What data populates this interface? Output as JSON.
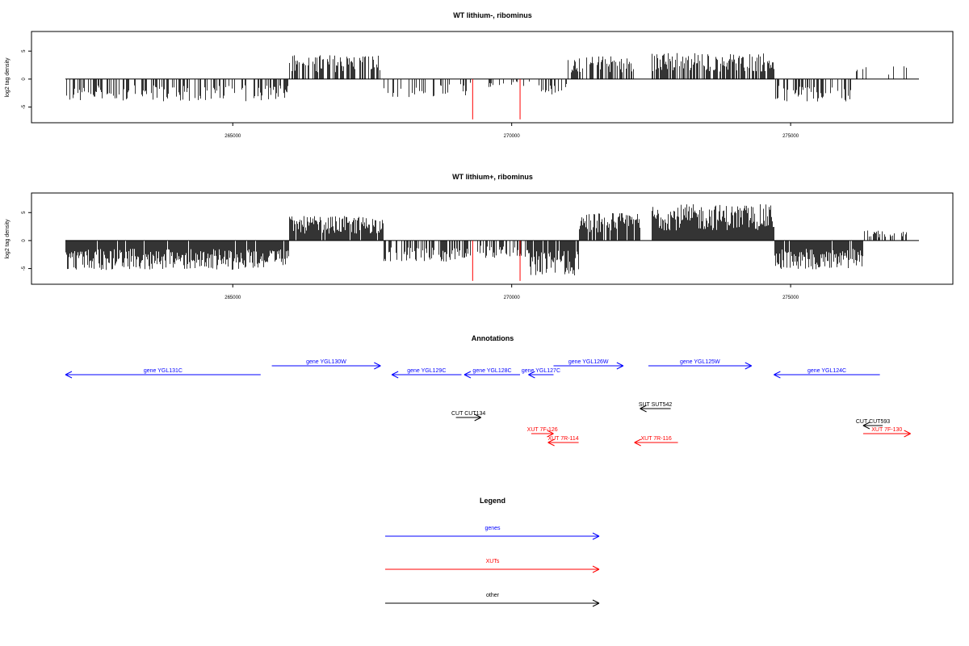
{
  "colors": {
    "gene": "#0000ff",
    "xut": "#ff0000",
    "other": "#000000",
    "signal": "#000000",
    "marker": "#ff0000"
  },
  "chart_data": [
    {
      "type": "bar",
      "title": "WT lithium-, ribominus",
      "xlabel": "",
      "ylabel": "log2 tag density",
      "xlim": [
        262000,
        277300
      ],
      "ylim": [
        -7.8,
        8.5
      ],
      "xticks": [
        265000,
        270000,
        275000
      ],
      "xtick_labels": [
        "265000",
        "270000",
        "275000"
      ],
      "yticks": [
        -5,
        0,
        5
      ],
      "ytick_labels": [
        "-5",
        "0",
        "5"
      ],
      "markers": [
        269300,
        270150
      ],
      "segments": [
        {
          "from": 262000,
          "to": 266000,
          "sign": -1,
          "amp": 3.2,
          "density": 0.45
        },
        {
          "from": 266000,
          "to": 267650,
          "sign": 1,
          "amp": 3.5,
          "density": 0.5
        },
        {
          "from": 267650,
          "to": 269200,
          "sign": -1,
          "amp": 2.6,
          "density": 0.3
        },
        {
          "from": 269200,
          "to": 270400,
          "sign": -1,
          "amp": 1.2,
          "density": 0.1
        },
        {
          "from": 270400,
          "to": 271000,
          "sign": -1,
          "amp": 2.3,
          "density": 0.35
        },
        {
          "from": 271000,
          "to": 272200,
          "sign": 1,
          "amp": 3.3,
          "density": 0.6
        },
        {
          "from": 272200,
          "to": 272500,
          "sign": 1,
          "amp": 1.0,
          "density": 0.1
        },
        {
          "from": 272500,
          "to": 274700,
          "sign": 1,
          "amp": 3.8,
          "density": 0.7
        },
        {
          "from": 274700,
          "to": 276100,
          "sign": -1,
          "amp": 3.2,
          "density": 0.5
        },
        {
          "from": 276100,
          "to": 277100,
          "sign": 1,
          "amp": 2.2,
          "density": 0.15
        }
      ]
    },
    {
      "type": "bar",
      "title": "WT lithium+, ribominus",
      "xlabel": "",
      "ylabel": "log2 tag density",
      "xlim": [
        262000,
        277300
      ],
      "ylim": [
        -7.8,
        8.5
      ],
      "xticks": [
        265000,
        270000,
        275000
      ],
      "xtick_labels": [
        "265000",
        "270000",
        "275000"
      ],
      "yticks": [
        -5,
        0,
        5
      ],
      "ytick_labels": [
        "-5",
        "0",
        "5"
      ],
      "markers": [
        269300,
        270150
      ],
      "segments": [
        {
          "from": 262000,
          "to": 266000,
          "sign": -1,
          "amp": 4.2,
          "density": 0.95
        },
        {
          "from": 266000,
          "to": 267700,
          "sign": 1,
          "amp": 3.5,
          "density": 0.95
        },
        {
          "from": 267700,
          "to": 269000,
          "sign": -1,
          "amp": 3.0,
          "density": 0.6
        },
        {
          "from": 269000,
          "to": 270300,
          "sign": -1,
          "amp": 2.5,
          "density": 0.5
        },
        {
          "from": 270300,
          "to": 271200,
          "sign": -1,
          "amp": 5.0,
          "density": 0.95
        },
        {
          "from": 271200,
          "to": 272300,
          "sign": 1,
          "amp": 4.0,
          "density": 0.9
        },
        {
          "from": 272500,
          "to": 274700,
          "sign": 1,
          "amp": 5.2,
          "density": 1.0
        },
        {
          "from": 274700,
          "to": 276300,
          "sign": -1,
          "amp": 4.2,
          "density": 0.95
        },
        {
          "from": 276300,
          "to": 277100,
          "sign": 1,
          "amp": 1.5,
          "density": 0.4
        }
      ]
    }
  ],
  "annotations": {
    "title": "Annotations",
    "features": [
      {
        "label": "gene YGL131C",
        "from": 262000,
        "to": 265500,
        "strand": "-",
        "kind": "gene",
        "row": 1
      },
      {
        "label": "gene YGL130W",
        "from": 265700,
        "to": 267650,
        "strand": "+",
        "kind": "gene",
        "row": 0
      },
      {
        "label": "gene YGL129C",
        "from": 267850,
        "to": 269100,
        "strand": "-",
        "kind": "gene",
        "row": 1
      },
      {
        "label": "gene YGL128C",
        "from": 269150,
        "to": 270150,
        "strand": "-",
        "kind": "gene",
        "row": 1
      },
      {
        "label": "gene YGL127C",
        "from": 270300,
        "to": 270750,
        "strand": "-",
        "kind": "gene",
        "row": 1
      },
      {
        "label": "gene YGL126W",
        "from": 270750,
        "to": 272000,
        "strand": "+",
        "kind": "gene",
        "row": 0
      },
      {
        "label": "gene YGL125W",
        "from": 272450,
        "to": 274300,
        "strand": "+",
        "kind": "gene",
        "row": 0
      },
      {
        "label": "gene YGL124C",
        "from": 274700,
        "to": 276600,
        "strand": "-",
        "kind": "gene",
        "row": 1
      },
      {
        "label": "SUT SUT542",
        "from": 272300,
        "to": 272850,
        "strand": "-",
        "kind": "other",
        "row": 2
      },
      {
        "label": "CUT CUT134",
        "from": 269000,
        "to": 269450,
        "strand": "+",
        "kind": "other",
        "row": 3
      },
      {
        "label": "CUT CUT593",
        "from": 276300,
        "to": 276650,
        "strand": "-",
        "kind": "other",
        "row": 4
      },
      {
        "label": "XUT 7F-126",
        "from": 270350,
        "to": 270750,
        "strand": "+",
        "kind": "xut",
        "row": 5
      },
      {
        "label": "XUT 7F-130",
        "from": 276300,
        "to": 277150,
        "strand": "+",
        "kind": "xut",
        "row": 5
      },
      {
        "label": "XUT 7R-114",
        "from": 270650,
        "to": 271200,
        "strand": "-",
        "kind": "xut",
        "row": 6
      },
      {
        "label": "XUT 7R-116",
        "from": 272200,
        "to": 272980,
        "strand": "-",
        "kind": "xut",
        "row": 6
      }
    ]
  },
  "legend": {
    "title": "Legend",
    "items": [
      {
        "label": "genes",
        "kind": "gene"
      },
      {
        "label": "XUTs",
        "kind": "xut"
      },
      {
        "label": "other",
        "kind": "other"
      }
    ]
  }
}
